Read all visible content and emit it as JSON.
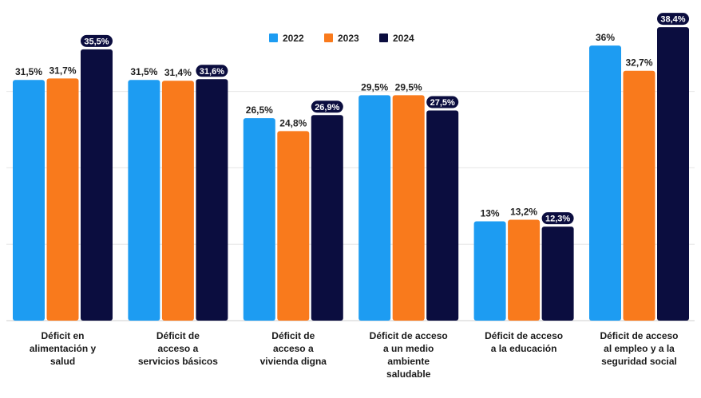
{
  "chart_data": {
    "type": "bar",
    "categories": [
      [
        "Déficit en",
        "alimentación y",
        "salud"
      ],
      [
        "Déficit de",
        "acceso a",
        "servicios básicos"
      ],
      [
        "Déficit de",
        "acceso a",
        "vivienda digna"
      ],
      [
        "Déficit de acceso",
        "a un medio",
        "ambiente",
        "saludable"
      ],
      [
        "Déficit de acceso",
        "a la educación"
      ],
      [
        "Déficit de acceso",
        "al empleo y a la",
        "seguridad social"
      ]
    ],
    "series": [
      {
        "name": "2022",
        "color": "#1d9cf2",
        "values": [
          31.5,
          31.5,
          26.5,
          29.5,
          13,
          36
        ],
        "labels": [
          "31,5%",
          "31,5%",
          "26,5%",
          "29,5%",
          "13%",
          "36%"
        ]
      },
      {
        "name": "2023",
        "color": "#f97a1c",
        "values": [
          31.7,
          31.4,
          24.8,
          29.5,
          13.2,
          32.7
        ],
        "labels": [
          "31,7%",
          "31,4%",
          "24,8%",
          "29,5%",
          "13,2%",
          "32,7%"
        ]
      },
      {
        "name": "2024",
        "color": "#0b0d3f",
        "values": [
          35.5,
          31.6,
          26.9,
          27.5,
          12.3,
          38.4
        ],
        "labels": [
          "35,5%",
          "31,6%",
          "26,9%",
          "27,5%",
          "12,3%",
          "38,4%"
        ]
      }
    ],
    "ylim": [
      0,
      40
    ],
    "grid": true,
    "legend": "top-center",
    "title": "",
    "xlabel": "",
    "ylabel": ""
  }
}
